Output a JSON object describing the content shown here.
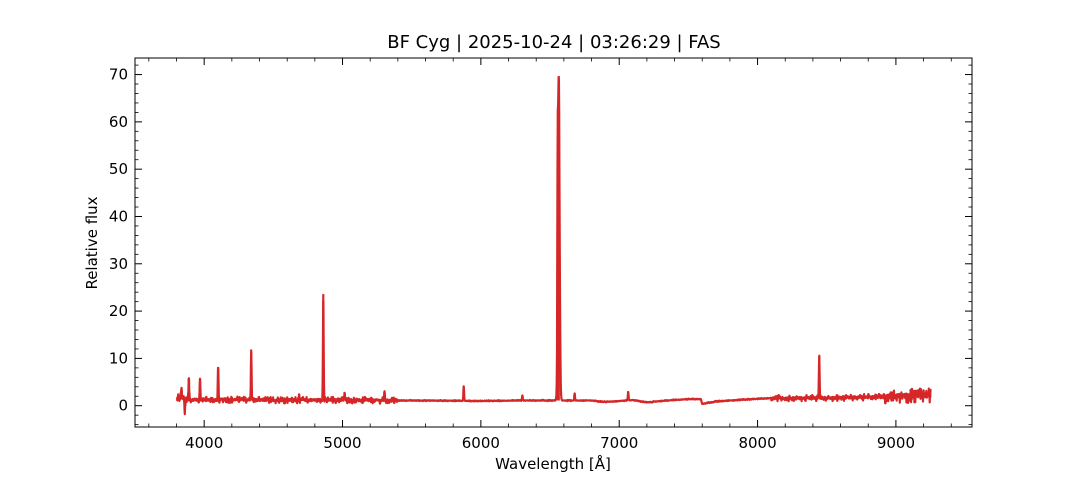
{
  "chart_data": {
    "type": "line",
    "title": "BF Cyg | 2025-10-24 | 03:26:29 | FAS",
    "xlabel": "Wavelength [Å]",
    "ylabel": "Relative flux",
    "xlim": [
      3500,
      9550
    ],
    "ylim": [
      -4.5,
      73.5
    ],
    "x_ticks": [
      4000,
      5000,
      6000,
      7000,
      8000,
      9000
    ],
    "y_ticks": [
      0,
      10,
      20,
      30,
      40,
      50,
      60,
      70
    ],
    "x_minor_step": 200,
    "y_minor_step": 2,
    "grid": false,
    "legend": "none",
    "series_color": "#d62728",
    "series": [
      {
        "continuum": [
          [
            3800,
            1.5
          ],
          [
            3900,
            1.3
          ],
          [
            4000,
            1.2
          ],
          [
            4200,
            1.3
          ],
          [
            4400,
            1.2
          ],
          [
            4600,
            1.2
          ],
          [
            4800,
            1.2
          ],
          [
            5000,
            1.2
          ],
          [
            5300,
            1.1
          ],
          [
            5600,
            1.1
          ],
          [
            6000,
            1.0
          ],
          [
            6300,
            1.1
          ],
          [
            6500,
            1.1
          ],
          [
            6800,
            1.1
          ],
          [
            6900,
            0.8
          ],
          [
            7100,
            1.2
          ],
          [
            7200,
            0.7
          ],
          [
            7300,
            1.0
          ],
          [
            7500,
            1.4
          ],
          [
            7590,
            1.4
          ],
          [
            7600,
            0.4
          ],
          [
            7700,
            0.9
          ],
          [
            7900,
            1.3
          ],
          [
            8100,
            1.6
          ],
          [
            8300,
            1.6
          ],
          [
            8600,
            1.7
          ],
          [
            8800,
            1.8
          ],
          [
            9000,
            2.0
          ],
          [
            9250,
            2.2
          ]
        ],
        "peaks": [
          [
            3835,
            3.4
          ],
          [
            3860,
            -1.0
          ],
          [
            3889,
            5.8
          ],
          [
            3970,
            5.5
          ],
          [
            4101,
            8.2
          ],
          [
            4340,
            11.3
          ],
          [
            4686,
            2.5
          ],
          [
            4861,
            23.6
          ],
          [
            5015,
            2.8
          ],
          [
            5303,
            3.0
          ],
          [
            5876,
            4.1
          ],
          [
            6300,
            2.2
          ],
          [
            6555,
            30.0
          ],
          [
            6563,
            69.7
          ],
          [
            6678,
            2.6
          ],
          [
            7065,
            3.0
          ],
          [
            8446,
            10.4
          ]
        ],
        "noise_regions": [
          [
            3800,
            3900,
            1.6
          ],
          [
            3900,
            5400,
            0.7
          ],
          [
            8100,
            8900,
            0.7
          ],
          [
            8900,
            9250,
            1.5
          ]
        ]
      }
    ]
  }
}
